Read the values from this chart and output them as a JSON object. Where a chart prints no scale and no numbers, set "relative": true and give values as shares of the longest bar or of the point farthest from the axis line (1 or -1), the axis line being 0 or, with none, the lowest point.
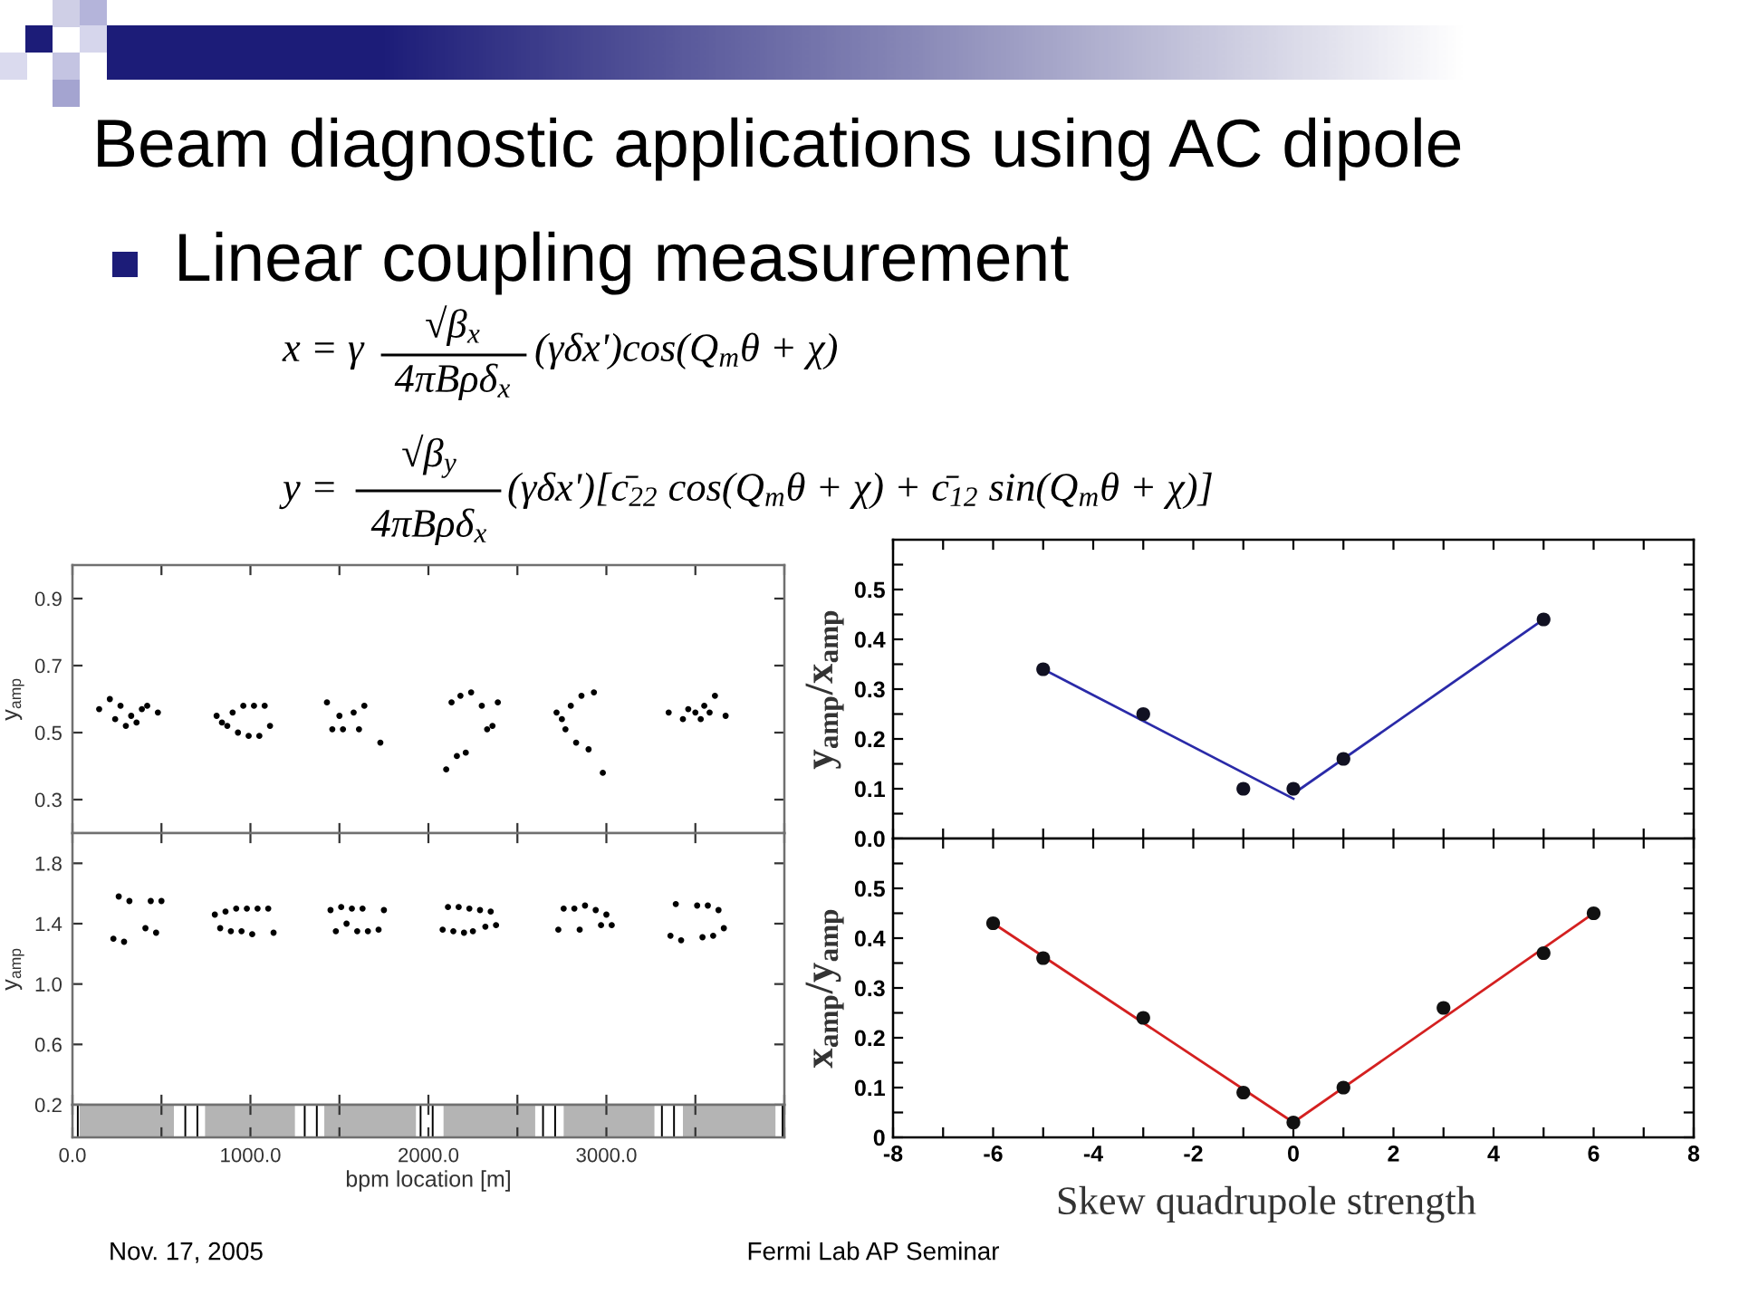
{
  "chart_data": [
    {
      "type": "other",
      "title": "Beam diagnostic applications using AC dipole",
      "subtitle": "Linear coupling measurement",
      "annotations": [
        "x = γ",
        "√β$_{x}$",
        "4πBρδ$_{x}$",
        "(γδx')cos(Q$_{m}$θ + χ)",
        "y =",
        "√β$_{y}$",
        "4πBρδ$_{x}$",
        "(γδx')[c̄$_{22}$ cos(Q$_{m}$θ + χ) + c̄$_{12}$ sin(Q$_{m}$θ + χ)]",
        "Nov. 17, 2005",
        "Fermi Lab AP Seminar"
      ]
    },
    {
      "type": "scatter",
      "ylabel": "y$_{amp}$",
      "marker": "circle",
      "color": "#000000",
      "xlim": [
        0,
        4000
      ],
      "xticks": [
        0,
        500,
        1000,
        1500,
        2000,
        2500,
        3000,
        3500,
        4000
      ],
      "ylim": [
        0.2,
        1.0
      ],
      "yticks": [
        0.3,
        0.5,
        0.7,
        0.9
      ],
      "tick_labels": "y",
      "x": [
        150,
        210,
        240,
        270,
        300,
        330,
        360,
        390,
        420,
        480,
        810,
        840,
        870,
        900,
        930,
        960,
        990,
        1020,
        1050,
        1080,
        1110,
        1430,
        1460,
        1500,
        1520,
        1580,
        1610,
        1640,
        1730,
        2100,
        2130,
        2160,
        2180,
        2210,
        2240,
        2300,
        2330,
        2360,
        2390,
        2720,
        2750,
        2770,
        2800,
        2830,
        2860,
        2900,
        2930,
        2980,
        3350,
        3430,
        3460,
        3500,
        3530,
        3550,
        3580,
        3610,
        3670
      ],
      "values": [
        0.57,
        0.6,
        0.54,
        0.58,
        0.52,
        0.55,
        0.53,
        0.57,
        0.58,
        0.56,
        0.55,
        0.53,
        0.52,
        0.56,
        0.5,
        0.58,
        0.49,
        0.58,
        0.49,
        0.58,
        0.52,
        0.59,
        0.51,
        0.55,
        0.51,
        0.56,
        0.51,
        0.58,
        0.47,
        0.39,
        0.59,
        0.43,
        0.61,
        0.44,
        0.62,
        0.58,
        0.51,
        0.52,
        0.59,
        0.56,
        0.54,
        0.51,
        0.58,
        0.47,
        0.61,
        0.45,
        0.62,
        0.38,
        0.56,
        0.54,
        0.57,
        0.56,
        0.54,
        0.58,
        0.56,
        0.61,
        0.55
      ]
    },
    {
      "type": "scatter",
      "ylabel": "y$_{amp}$",
      "marker": "circle",
      "color": "#000000",
      "xlim": [
        0,
        4000
      ],
      "xticks": [
        0,
        500,
        1000,
        1500,
        2000,
        2500,
        3000,
        3500,
        4000
      ],
      "ylim": [
        0.2,
        2.0
      ],
      "yticks": [
        0.2,
        0.6,
        {
          "value": 1,
          "label": "1.0"
        },
        1.4,
        1.8
      ],
      "tick_labels": "y",
      "x": [
        230,
        260,
        290,
        320,
        410,
        440,
        470,
        500,
        800,
        830,
        860,
        890,
        920,
        950,
        980,
        1010,
        1040,
        1100,
        1130,
        1450,
        1480,
        1510,
        1540,
        1570,
        1600,
        1630,
        1660,
        1720,
        1750,
        2080,
        2110,
        2140,
        2170,
        2200,
        2230,
        2250,
        2290,
        2320,
        2350,
        2380,
        2730,
        2760,
        2820,
        2850,
        2880,
        2940,
        2970,
        3000,
        3030,
        3360,
        3390,
        3420,
        3510,
        3540,
        3570,
        3600,
        3630,
        3660
      ],
      "values": [
        1.3,
        1.58,
        1.28,
        1.55,
        1.37,
        1.55,
        1.34,
        1.55,
        1.46,
        1.37,
        1.48,
        1.35,
        1.5,
        1.35,
        1.5,
        1.33,
        1.5,
        1.5,
        1.34,
        1.49,
        1.35,
        1.51,
        1.4,
        1.5,
        1.35,
        1.5,
        1.35,
        1.36,
        1.49,
        1.36,
        1.51,
        1.35,
        1.51,
        1.34,
        1.5,
        1.35,
        1.49,
        1.38,
        1.48,
        1.39,
        1.36,
        1.5,
        1.5,
        1.36,
        1.52,
        1.49,
        1.39,
        1.46,
        1.39,
        1.32,
        1.53,
        1.29,
        1.52,
        1.31,
        1.52,
        1.32,
        1.49,
        1.37
      ]
    },
    {
      "type": "bar",
      "relative": true,
      "color": "#000000",
      "xlabel": "bpm location [m]",
      "xlim": [
        0,
        4000
      ],
      "xticks": [
        {
          "value": 0,
          "label": "0.0"
        },
        {
          "value": 500,
          "label": null
        },
        {
          "value": 1000,
          "label": "1000.0"
        },
        {
          "value": 1500,
          "label": null
        },
        {
          "value": 2000,
          "label": "2000.0"
        },
        {
          "value": 2500,
          "label": null
        },
        {
          "value": 3000,
          "label": "3000.0"
        },
        {
          "value": 3500,
          "label": null
        },
        {
          "value": 4000,
          "label": null
        }
      ],
      "tick_labels": "x",
      "x": [
        30,
        634,
        702,
        1305,
        1373,
        1956,
        2024,
        2644,
        2712,
        3312,
        3380,
        3990
      ],
      "values": [
        1,
        1,
        1,
        1,
        1,
        1,
        1,
        1,
        1,
        1,
        1,
        1
      ],
      "bands": [
        {
          "axis": "x",
          "from": 40,
          "to": 570,
          "color": "#b4b4b4"
        },
        {
          "axis": "x",
          "from": 745,
          "to": 1250,
          "color": "#b4b4b4"
        },
        {
          "axis": "x",
          "from": 1415,
          "to": 1930,
          "color": "#b4b4b4"
        },
        {
          "axis": "x",
          "from": 2085,
          "to": 2600,
          "color": "#b4b4b4"
        },
        {
          "axis": "x",
          "from": 2760,
          "to": 3270,
          "color": "#b4b4b4"
        },
        {
          "axis": "x",
          "from": 3430,
          "to": 3950,
          "color": "#b4b4b4"
        }
      ]
    },
    {
      "type": "scatter",
      "ylabel": "y$_{amp}$/x$_{amp}$",
      "xlim": [
        -8,
        8
      ],
      "xticks": [
        -8,
        {
          "value": -7,
          "label": null
        },
        -6,
        {
          "value": -5,
          "label": null
        },
        -4,
        {
          "value": -3,
          "label": null
        },
        -2,
        {
          "value": -1,
          "label": null
        },
        0,
        {
          "value": 1,
          "label": null
        },
        2,
        {
          "value": 3,
          "label": null
        },
        4,
        {
          "value": 5,
          "label": null
        },
        6,
        {
          "value": 7,
          "label": null
        },
        8
      ],
      "ylim": [
        0,
        0.6
      ],
      "yticks": [
        {
          "value": 0,
          "label": "0.0"
        },
        {
          "value": 0.05,
          "label": null
        },
        0.1,
        {
          "value": 0.15,
          "label": null
        },
        0.2,
        {
          "value": 0.25,
          "label": null
        },
        0.3,
        {
          "value": 0.35,
          "label": null
        },
        0.4,
        {
          "value": 0.45,
          "label": null
        },
        0.5,
        {
          "value": 0.55,
          "label": null
        }
      ],
      "tick_labels": "y",
      "series": [
        {
          "type": "scatter",
          "marker": "circle",
          "color": "#111122",
          "x": [
            -5,
            -3,
            -1,
            0,
            1,
            5
          ],
          "values": [
            0.34,
            0.25,
            0.1,
            0.1,
            0.16,
            0.44
          ]
        },
        {
          "type": "line",
          "color": "#2a2aa8",
          "x": [
            -5,
            0
          ],
          "values": [
            0.34,
            0.08
          ]
        },
        {
          "type": "line",
          "color": "#2a2aa8",
          "x": [
            0,
            5
          ],
          "values": [
            0.09,
            0.44
          ]
        }
      ]
    },
    {
      "type": "scatter",
      "ylabel": "x$_{amp}$/y$_{amp}$",
      "xlabel": "Skew quadrupole strength",
      "xlim": [
        -8,
        8
      ],
      "xticks": [
        -8,
        {
          "value": -7,
          "label": null
        },
        -6,
        {
          "value": -5,
          "label": null
        },
        -4,
        {
          "value": -3,
          "label": null
        },
        -2,
        {
          "value": -1,
          "label": null
        },
        0,
        {
          "value": 1,
          "label": null
        },
        2,
        {
          "value": 3,
          "label": null
        },
        4,
        {
          "value": 5,
          "label": null
        },
        6,
        {
          "value": 7,
          "label": null
        },
        8
      ],
      "ylim": [
        0,
        0.6
      ],
      "yticks": [
        0,
        {
          "value": 0.05,
          "label": null
        },
        0.1,
        {
          "value": 0.15,
          "label": null
        },
        0.2,
        {
          "value": 0.25,
          "label": null
        },
        0.3,
        {
          "value": 0.35,
          "label": null
        },
        0.4,
        {
          "value": 0.45,
          "label": null
        },
        0.5,
        {
          "value": 0.55,
          "label": null
        }
      ],
      "series": [
        {
          "type": "scatter",
          "marker": "circle",
          "color": "#111111",
          "x": [
            -6,
            -5,
            -3,
            -1,
            0,
            1,
            3,
            5,
            6
          ],
          "values": [
            0.43,
            0.36,
            0.24,
            0.09,
            0.03,
            0.1,
            0.26,
            0.37,
            0.45
          ]
        },
        {
          "type": "line",
          "color": "#d42020",
          "x": [
            -6,
            0
          ],
          "values": [
            0.43,
            0.03
          ]
        },
        {
          "type": "line",
          "color": "#d42020",
          "x": [
            0,
            6
          ],
          "values": [
            0.03,
            0.45
          ]
        }
      ]
    }
  ]
}
